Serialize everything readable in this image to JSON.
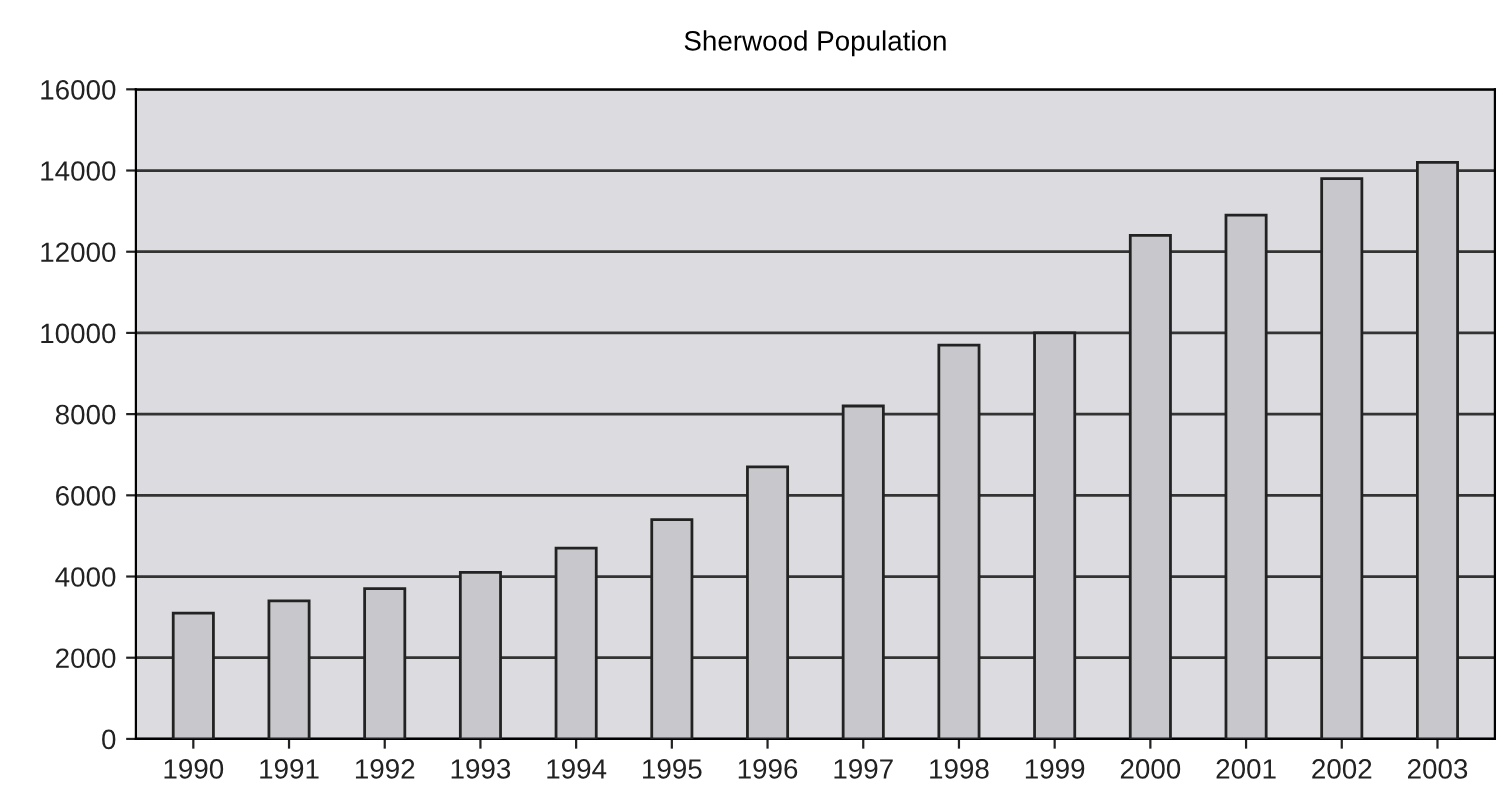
{
  "chart_data": {
    "type": "bar",
    "title": "Sherwood Population",
    "categories": [
      "1990",
      "1991",
      "1992",
      "1993",
      "1994",
      "1995",
      "1996",
      "1997",
      "1998",
      "1999",
      "2000",
      "2001",
      "2002",
      "2003"
    ],
    "values": [
      3100,
      3400,
      3700,
      4100,
      4700,
      5400,
      6700,
      8200,
      9700,
      10000,
      12400,
      12900,
      13800,
      14200
    ],
    "color": "#c8c8cc",
    "ylim": [
      0,
      16000
    ],
    "yticks": [
      0,
      2000,
      4000,
      6000,
      8000,
      10000,
      12000,
      14000,
      16000
    ],
    "grid": "y"
  }
}
